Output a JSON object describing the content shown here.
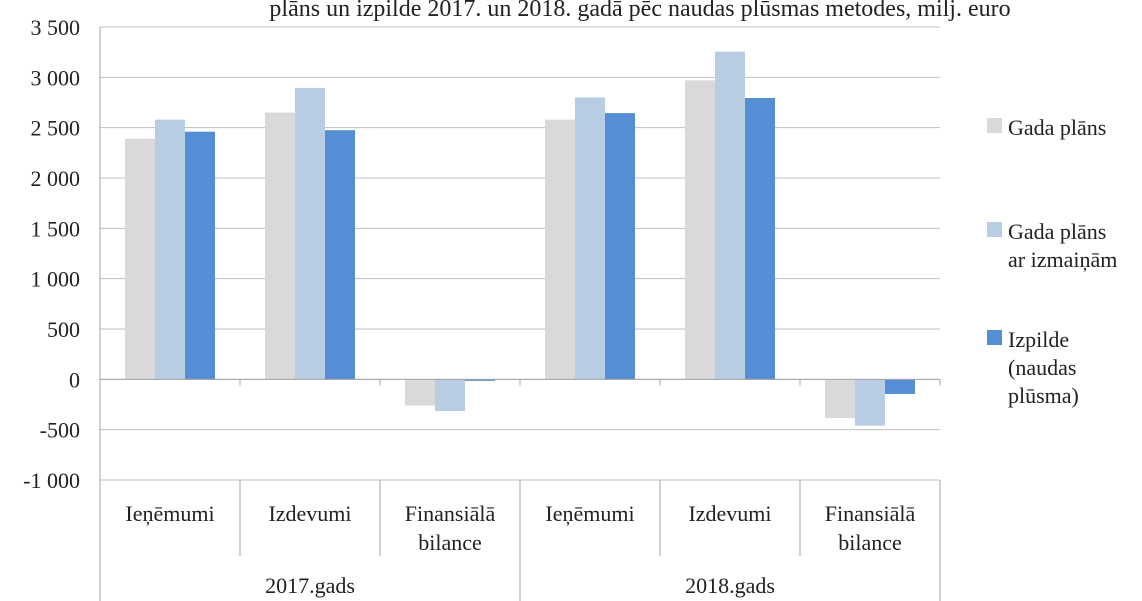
{
  "chart_data": {
    "type": "bar",
    "title": "plāns un izpilde 2017. un 2018. gadā pēc naudas plūsmas metodes, milj. euro",
    "groups": [
      {
        "label": "2017.gads",
        "categories": [
          "Ieņēmumi",
          "Izdevumi",
          "Finansiālā bilance"
        ]
      },
      {
        "label": "2018.gads",
        "categories": [
          "Ieņēmumi",
          "Izdevumi",
          "Finansiālā bilance"
        ]
      }
    ],
    "series": [
      {
        "name": "Gada plāns",
        "color": "#d9d9d9",
        "values": [
          2390,
          2650,
          -260,
          2580,
          2970,
          -385
        ]
      },
      {
        "name": "Gada plāns ar izmaiņām",
        "color": "#b8cce4",
        "values": [
          2580,
          2895,
          -315,
          2800,
          3255,
          -460
        ]
      },
      {
        "name": "Izpilde (naudas plūsma)",
        "color": "#558ed5",
        "values": [
          2460,
          2475,
          -15,
          2645,
          2795,
          -145
        ]
      }
    ],
    "y_ticks": [
      "3 500",
      "3 000",
      "2 500",
      "2 000",
      "1 500",
      "1 000",
      "500",
      "0",
      "-500",
      "-1 000"
    ],
    "ylim": [
      -1000,
      3500
    ],
    "y_step": 500,
    "grid": true,
    "legend_position": "right",
    "legend_lines": [
      [
        "Gada plāns"
      ],
      [
        "Gada plāns",
        "ar izmaiņām"
      ],
      [
        "Izpilde",
        "(naudas",
        "plūsma)"
      ]
    ],
    "colors": {
      "grid": "#bfbfbf",
      "axis": "#a6a6a6"
    }
  }
}
